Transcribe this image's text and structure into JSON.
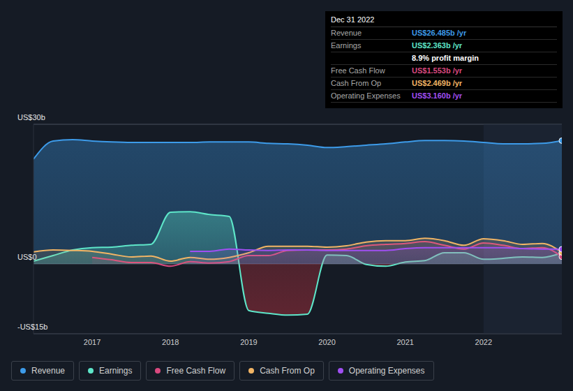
{
  "chart_data": {
    "type": "area",
    "x": [
      2016.25,
      2016.5,
      2016.75,
      2017,
      2017.25,
      2017.5,
      2017.75,
      2018,
      2018.25,
      2018.5,
      2018.75,
      2019,
      2019.25,
      2019.5,
      2019.75,
      2020,
      2020.25,
      2020.5,
      2020.75,
      2021,
      2021.25,
      2021.5,
      2021.75,
      2022,
      2022.25,
      2022.5,
      2022.75,
      2023
    ],
    "xlim": [
      2016.25,
      2023
    ],
    "xticks": [
      2017,
      2018,
      2019,
      2020,
      2021,
      2022
    ],
    "ylim": [
      -15,
      30
    ],
    "yticks": [
      {
        "value": 30,
        "label": "US$30b"
      },
      {
        "value": 0,
        "label": "US$0"
      },
      {
        "value": -15,
        "label": "-US$15b"
      }
    ],
    "grid": true,
    "legend": "bottom",
    "series": [
      {
        "name": "Revenue",
        "color": "#3d9be9",
        "values": [
          22.5,
          26.4,
          26.7,
          26.4,
          26.2,
          26.1,
          26.1,
          26.1,
          26.1,
          26.2,
          26.2,
          26.2,
          25.9,
          25.8,
          25.5,
          25.0,
          25.2,
          25.5,
          25.8,
          26.2,
          26.5,
          26.5,
          26.4,
          26.1,
          25.8,
          25.8,
          25.9,
          26.485
        ]
      },
      {
        "name": "Earnings",
        "color": "#5ee6c9",
        "values": [
          0.6,
          1.8,
          3.0,
          3.5,
          3.6,
          4.0,
          4.2,
          11.1,
          11.2,
          10.6,
          10.2,
          -10.0,
          -10.6,
          -11.0,
          -10.8,
          1.9,
          1.8,
          -0.1,
          -0.5,
          0.4,
          0.7,
          2.4,
          2.4,
          1.0,
          1.2,
          1.5,
          1.4,
          2.363
        ]
      },
      {
        "name": "Free Cash Flow",
        "color": "#d9497f",
        "values": [
          null,
          null,
          null,
          1.4,
          0.9,
          0.3,
          0.3,
          -0.5,
          0.5,
          0.2,
          0.5,
          1.8,
          1.8,
          2.9,
          3.0,
          3.0,
          3.2,
          3.9,
          4.2,
          4.4,
          4.8,
          4.0,
          3.2,
          4.5,
          4.0,
          3.3,
          3.5,
          1.553
        ]
      },
      {
        "name": "Cash From Op",
        "color": "#f2b565",
        "values": [
          2.6,
          3.0,
          2.9,
          2.7,
          2.1,
          1.5,
          1.7,
          0.6,
          1.4,
          1.0,
          1.4,
          2.4,
          3.8,
          3.8,
          3.8,
          3.6,
          3.9,
          4.7,
          5.0,
          5.0,
          5.5,
          5.0,
          4.0,
          5.4,
          5.0,
          4.2,
          4.4,
          2.469
        ]
      },
      {
        "name": "Operating Expenses",
        "color": "#a04ff3",
        "values": [
          null,
          null,
          null,
          null,
          null,
          null,
          null,
          null,
          2.7,
          2.7,
          3.2,
          3.0,
          2.9,
          3.0,
          3.0,
          2.9,
          2.9,
          2.9,
          2.9,
          3.3,
          3.5,
          3.5,
          3.5,
          3.5,
          3.5,
          3.3,
          3.2,
          3.16
        ]
      }
    ],
    "info_box": {
      "title": "Dec 31 2022",
      "rows": [
        {
          "label": "Revenue",
          "value": "US$26.485b /yr"
        },
        {
          "label": "Earnings",
          "value": "US$2.363b /yr"
        },
        {
          "value": "8.9% profit margin"
        },
        {
          "label": "Free Cash Flow",
          "value": "US$1.553b /yr"
        },
        {
          "label": "Cash From Op",
          "value": "US$2.469b /yr"
        },
        {
          "label": "Operating Expenses",
          "value": "US$3.160b /yr"
        }
      ]
    }
  }
}
